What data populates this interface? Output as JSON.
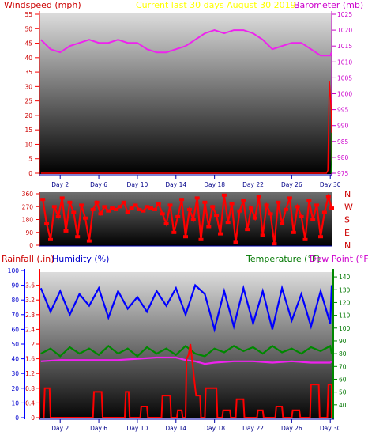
{
  "chart_data": [
    {
      "type": "line",
      "name": "wind-baro",
      "title": "Current last 30 days August 30 2019",
      "left_axis_label": "Windspeed (mph)",
      "right_axis_label": "Barometer (mb)",
      "x_tick_labels": [
        "Day 2",
        "Day 6",
        "Day 10",
        "Day 14",
        "Day 18",
        "Day 22",
        "Day 26",
        "Day 30"
      ],
      "xlim_days": [
        0,
        30.5
      ],
      "left_ylim": [
        0,
        55
      ],
      "left_ticks": [
        0,
        5,
        10,
        15,
        20,
        25,
        30,
        35,
        40,
        45,
        50,
        55
      ],
      "right_ylim": [
        975,
        1025
      ],
      "right_ticks": [
        975,
        980,
        985,
        990,
        995,
        1000,
        1005,
        1010,
        1015,
        1020,
        1025
      ],
      "series": [
        {
          "name": "Barometer",
          "color": "#ee22ee",
          "axis": "right",
          "x": [
            0,
            1,
            2,
            3,
            4,
            5,
            6,
            7,
            8,
            9,
            10,
            11,
            12,
            13,
            14,
            15,
            16,
            17,
            18,
            19,
            20,
            21,
            22,
            23,
            24,
            25,
            26,
            27,
            28,
            29,
            30,
            30.4
          ],
          "y": [
            1017,
            1014,
            1013,
            1015,
            1016,
            1017,
            1016,
            1016,
            1017,
            1016,
            1016,
            1014,
            1013,
            1013,
            1014,
            1015,
            1017,
            1019,
            1020,
            1019,
            1020,
            1020,
            1019,
            1017,
            1014,
            1015,
            1016,
            1016,
            1014,
            1012,
            1012,
            1013
          ]
        },
        {
          "name": "Windspeed",
          "color": "#ff0000",
          "axis": "left",
          "x": [
            0,
            5,
            10,
            15,
            20,
            25,
            29.6,
            29.75,
            29.9,
            30.1,
            30.3,
            30.5
          ],
          "y": [
            0,
            0,
            0,
            0,
            0,
            0,
            0,
            1,
            32,
            22,
            15,
            4
          ]
        },
        {
          "name": "Gust",
          "color": "#008800",
          "axis": "left",
          "x": [
            30.1,
            30.2,
            30.3,
            30.4,
            30.5
          ],
          "y": [
            0,
            3,
            14,
            8,
            0
          ]
        }
      ]
    },
    {
      "type": "scatter",
      "name": "wind-direction",
      "x_tick_labels": [
        "Day 2",
        "Day 6",
        "Day 10",
        "Day 14",
        "Day 18",
        "Day 22",
        "Day 26",
        "Day 30"
      ],
      "ylim": [
        0,
        360
      ],
      "left_ticks": [
        0,
        90,
        180,
        270,
        360
      ],
      "left_tick_labels": [
        "0",
        "90",
        "180",
        "270",
        "360"
      ],
      "compass_labels": [
        "N",
        "W",
        "S",
        "E",
        "N"
      ],
      "series": [
        {
          "name": "Wind direction",
          "color": "#ff0000",
          "x": [
            0.2,
            0.6,
            1.0,
            1.4,
            1.8,
            2.2,
            2.6,
            3.0,
            3.4,
            3.8,
            4.2,
            4.6,
            5.0,
            5.4,
            5.8,
            6.2,
            6.6,
            7.0,
            7.4,
            7.8,
            8.2,
            8.6,
            9.0,
            9.4,
            9.8,
            10.2,
            10.6,
            11.0,
            11.4,
            11.8,
            12.2,
            12.6,
            13.0,
            13.4,
            13.8,
            14.2,
            14.6,
            15.0,
            15.4,
            15.8,
            16.2,
            16.6,
            17.0,
            17.4,
            17.8,
            18.2,
            18.6,
            19.0,
            19.4,
            19.8,
            20.2,
            20.6,
            21.0,
            21.4,
            21.8,
            22.2,
            22.6,
            23.0,
            23.4,
            23.8,
            24.2,
            24.6,
            25.0,
            25.4,
            25.8,
            26.2,
            26.6,
            27.0,
            27.4,
            27.8,
            28.2,
            28.6,
            29.0,
            29.4,
            29.8,
            30.2
          ],
          "y": [
            320,
            150,
            40,
            270,
            200,
            330,
            100,
            300,
            230,
            60,
            280,
            190,
            30,
            250,
            300,
            220,
            270,
            240,
            260,
            250,
            270,
            300,
            230,
            260,
            280,
            250,
            240,
            270,
            260,
            250,
            290,
            220,
            150,
            280,
            90,
            200,
            320,
            60,
            250,
            180,
            330,
            40,
            300,
            130,
            270,
            210,
            80,
            350,
            160,
            290,
            20,
            240,
            310,
            110,
            260,
            190,
            340,
            70,
            280,
            220,
            10,
            300,
            150,
            250,
            330,
            90,
            270,
            200,
            40,
            310,
            180,
            280,
            60,
            230,
            340,
            260
          ]
        }
      ]
    },
    {
      "type": "line",
      "name": "rain-hum-temp",
      "rain_axis_label": "Rainfall (.in)",
      "humidity_axis_label": "Humidity (%)",
      "temp_axis_label": "Temperature (°F)",
      "dew_axis_label": "Dew Point (°F)",
      "x_tick_labels": [
        "Day 2",
        "Day 6",
        "Day 10",
        "Day 14",
        "Day 18",
        "Day 22",
        "Day 26",
        "Day 30"
      ],
      "rain_ylim": [
        0,
        4.0
      ],
      "rain_ticks": [
        "0",
        "0.4",
        "0.8",
        "1.2",
        "1.6",
        "2",
        "2.4",
        "2.8",
        "3.2",
        "3.6"
      ],
      "humidity_ylim": [
        0,
        100
      ],
      "humidity_ticks": [
        "0",
        "10",
        "20",
        "30",
        "40",
        "50",
        "60",
        "70",
        "80",
        "90",
        "100"
      ],
      "temp_ylim": [
        30,
        145
      ],
      "temp_ticks": [
        "40",
        "50",
        "60",
        "70",
        "80",
        "90",
        "100",
        "110",
        "120",
        "130",
        "140"
      ],
      "series": [
        {
          "name": "Humidity",
          "color": "#0000ff",
          "axis": "humidity",
          "x": [
            0,
            1,
            2,
            3,
            4,
            5,
            6,
            7,
            8,
            9,
            10,
            11,
            12,
            13,
            14,
            15,
            16,
            17,
            18,
            19,
            20,
            21,
            22,
            23,
            24,
            25,
            26,
            27,
            28,
            29,
            30,
            30.4
          ],
          "y": [
            88,
            72,
            86,
            70,
            84,
            76,
            88,
            68,
            86,
            74,
            82,
            72,
            86,
            76,
            88,
            70,
            90,
            84,
            60,
            86,
            62,
            88,
            64,
            86,
            60,
            88,
            66,
            84,
            62,
            86,
            64,
            90
          ]
        },
        {
          "name": "Temperature",
          "color": "#008800",
          "axis": "temp",
          "x": [
            0,
            1,
            2,
            3,
            4,
            5,
            6,
            7,
            8,
            9,
            10,
            11,
            12,
            13,
            14,
            15,
            16,
            17,
            18,
            19,
            20,
            21,
            22,
            23,
            24,
            25,
            26,
            27,
            28,
            29,
            30,
            30.4
          ],
          "y": [
            80,
            84,
            78,
            85,
            80,
            84,
            79,
            86,
            80,
            84,
            78,
            85,
            80,
            84,
            79,
            86,
            80,
            78,
            84,
            81,
            86,
            82,
            85,
            80,
            86,
            81,
            84,
            80,
            85,
            82,
            86,
            80
          ]
        },
        {
          "name": "Dew Point",
          "color": "#ee22ee",
          "axis": "temp",
          "x": [
            0,
            2,
            4,
            6,
            8,
            10,
            12,
            14,
            15,
            16,
            17,
            18,
            20,
            22,
            24,
            26,
            28,
            30,
            30.4
          ],
          "y": [
            74,
            75,
            75,
            75,
            75,
            76,
            77,
            77,
            75,
            74,
            72,
            73,
            74,
            74,
            73,
            74,
            73,
            73,
            74
          ]
        },
        {
          "name": "Rainfall",
          "color": "#ff0000",
          "axis": "rain",
          "x": [
            0.3,
            0.4,
            0.9,
            1.0,
            1.8,
            2.0,
            5.4,
            5.5,
            6.3,
            6.4,
            8.7,
            8.8,
            9.1,
            9.2,
            10.3,
            10.4,
            11.0,
            11.1,
            12.5,
            12.6,
            13.4,
            13.5,
            14.1,
            14.2,
            14.6,
            14.7,
            15.0,
            15.1,
            15.3,
            15.5,
            16.0,
            16.1,
            16.5,
            16.6,
            17.0,
            17.1,
            18.2,
            18.3,
            18.8,
            18.9,
            19.6,
            19.7,
            20.2,
            20.3,
            21.0,
            21.1,
            22.4,
            22.5,
            23.0,
            23.1,
            24.3,
            24.4,
            25.0,
            25.1,
            26.0,
            26.1,
            26.8,
            26.9,
            27.9,
            28.0,
            28.8,
            28.9,
            29.7,
            29.8,
            30.3,
            30.4
          ],
          "y": [
            0,
            0.8,
            0.8,
            0,
            0,
            0,
            0,
            0.7,
            0.7,
            0,
            0,
            0.7,
            0.7,
            0,
            0,
            0.3,
            0.3,
            0,
            0,
            0.6,
            0.6,
            0,
            0,
            0.2,
            0.2,
            0,
            0,
            1.6,
            1.7,
            2.0,
            0.8,
            0.6,
            0.6,
            0,
            0,
            0.8,
            0.8,
            0,
            0,
            0.2,
            0.2,
            0,
            0,
            0.5,
            0.5,
            0,
            0,
            0.2,
            0.2,
            0,
            0,
            0.3,
            0.3,
            0,
            0,
            0.2,
            0.2,
            0,
            0,
            0.9,
            0.9,
            0,
            0,
            0.9,
            0.9,
            0
          ]
        }
      ]
    }
  ]
}
